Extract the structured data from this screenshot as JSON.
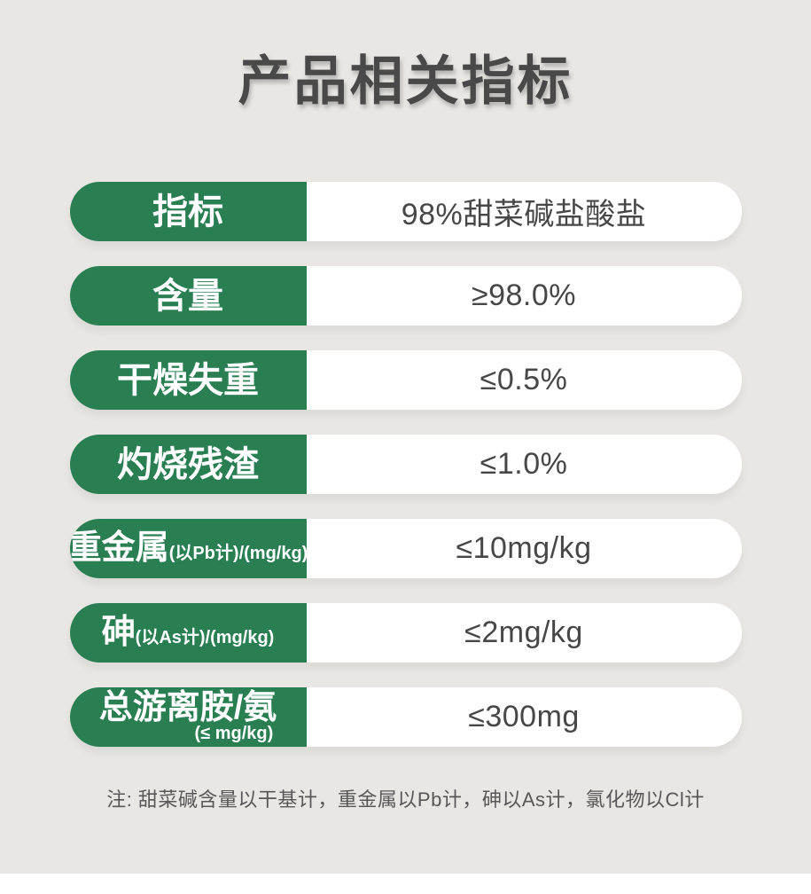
{
  "title": "产品相关指标",
  "colors": {
    "accent_green": "#297e52",
    "panel_background": "#e8e7e4",
    "title_color": "#494949",
    "value_text_color": "#474747",
    "label_text_color": "#ffffff"
  },
  "table": {
    "rows": [
      {
        "label": "指标",
        "value": "98%甜菜碱盐酸盐"
      },
      {
        "label": "含量",
        "value": "≥98.0%"
      },
      {
        "label": "干燥失重",
        "value": "≤0.5%"
      },
      {
        "label": "灼烧残渣",
        "value": "≤1.0%"
      },
      {
        "label": "重金属",
        "label_note": "(以Pb计)/(mg/kg)",
        "value": "≤10mg/kg"
      },
      {
        "label": "砷",
        "label_note": "(以As计)/(mg/kg)",
        "value": "≤2mg/kg"
      },
      {
        "label": "总游离胺/氨",
        "label_subnote": "(≤ mg/kg)",
        "value": "≤300mg"
      }
    ]
  },
  "footnote": "注: 甜菜碱含量以干基计，重金属以Pb计，砷以As计，氯化物以Cl计"
}
